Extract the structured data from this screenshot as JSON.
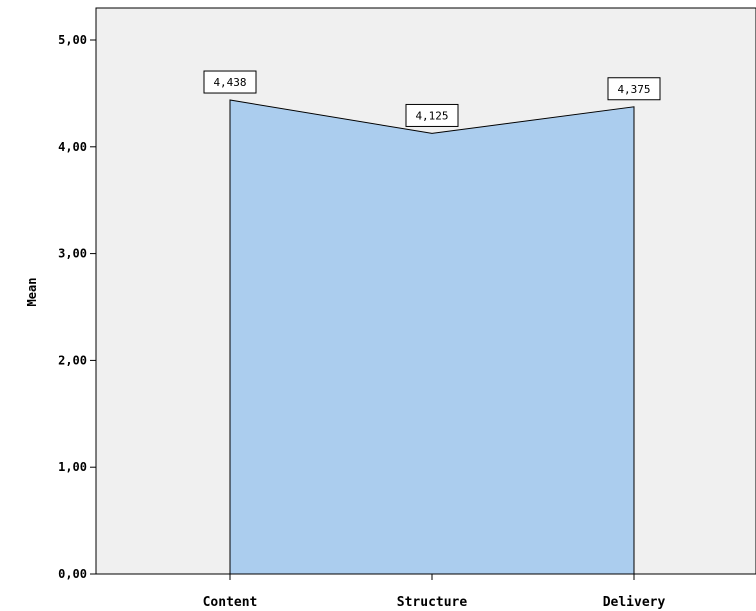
{
  "chart_data": {
    "type": "area",
    "title": "",
    "xlabel": "",
    "ylabel": "Mean",
    "categories": [
      "Content",
      "Structure",
      "Delivery"
    ],
    "series": [
      {
        "values": [
          4.438,
          4.125,
          4.375
        ]
      }
    ],
    "data_labels": [
      "4,438",
      "4,125",
      "4,375"
    ],
    "yticks": [
      "0,00",
      "1,00",
      "2,00",
      "3,00",
      "4,00",
      "5,00"
    ],
    "ylim": [
      0,
      5.3
    ],
    "grid": false,
    "legend": "none",
    "colors": {
      "plot_background": "#f0f0f0",
      "area_fill": "#abcdee",
      "area_stroke": "#000000",
      "axis": "#000000"
    }
  }
}
